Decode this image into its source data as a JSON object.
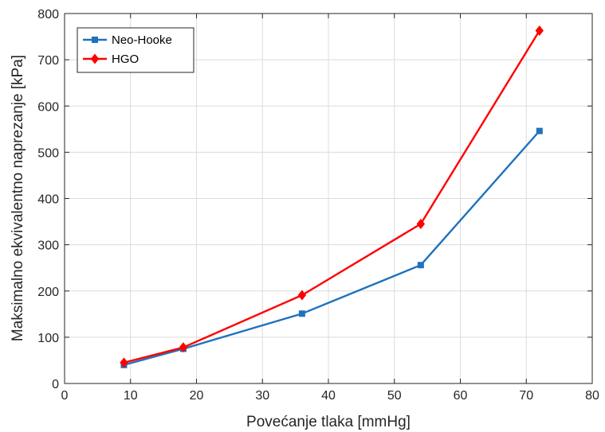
{
  "chart_data": {
    "type": "line",
    "xlabel": "Povećanje tlaka [mmHg]",
    "ylabel": "Maksimalno ekvivalentno naprezanje [kPa]",
    "xlim": [
      0,
      80
    ],
    "ylim": [
      0,
      800
    ],
    "xticks": [
      0,
      10,
      20,
      30,
      40,
      50,
      60,
      70,
      80
    ],
    "yticks": [
      0,
      100,
      200,
      300,
      400,
      500,
      600,
      700,
      800
    ],
    "grid": true,
    "legend_position": "top-left",
    "x": [
      9,
      18,
      36,
      54,
      72
    ],
    "series": [
      {
        "name": "Neo-Hooke",
        "values": [
          40,
          75,
          151,
          256,
          546
        ],
        "color": "#1f72bd",
        "marker": "square"
      },
      {
        "name": "HGO",
        "values": [
          45,
          78,
          191,
          345,
          763
        ],
        "color": "#ff0000",
        "marker": "diamond"
      }
    ]
  }
}
